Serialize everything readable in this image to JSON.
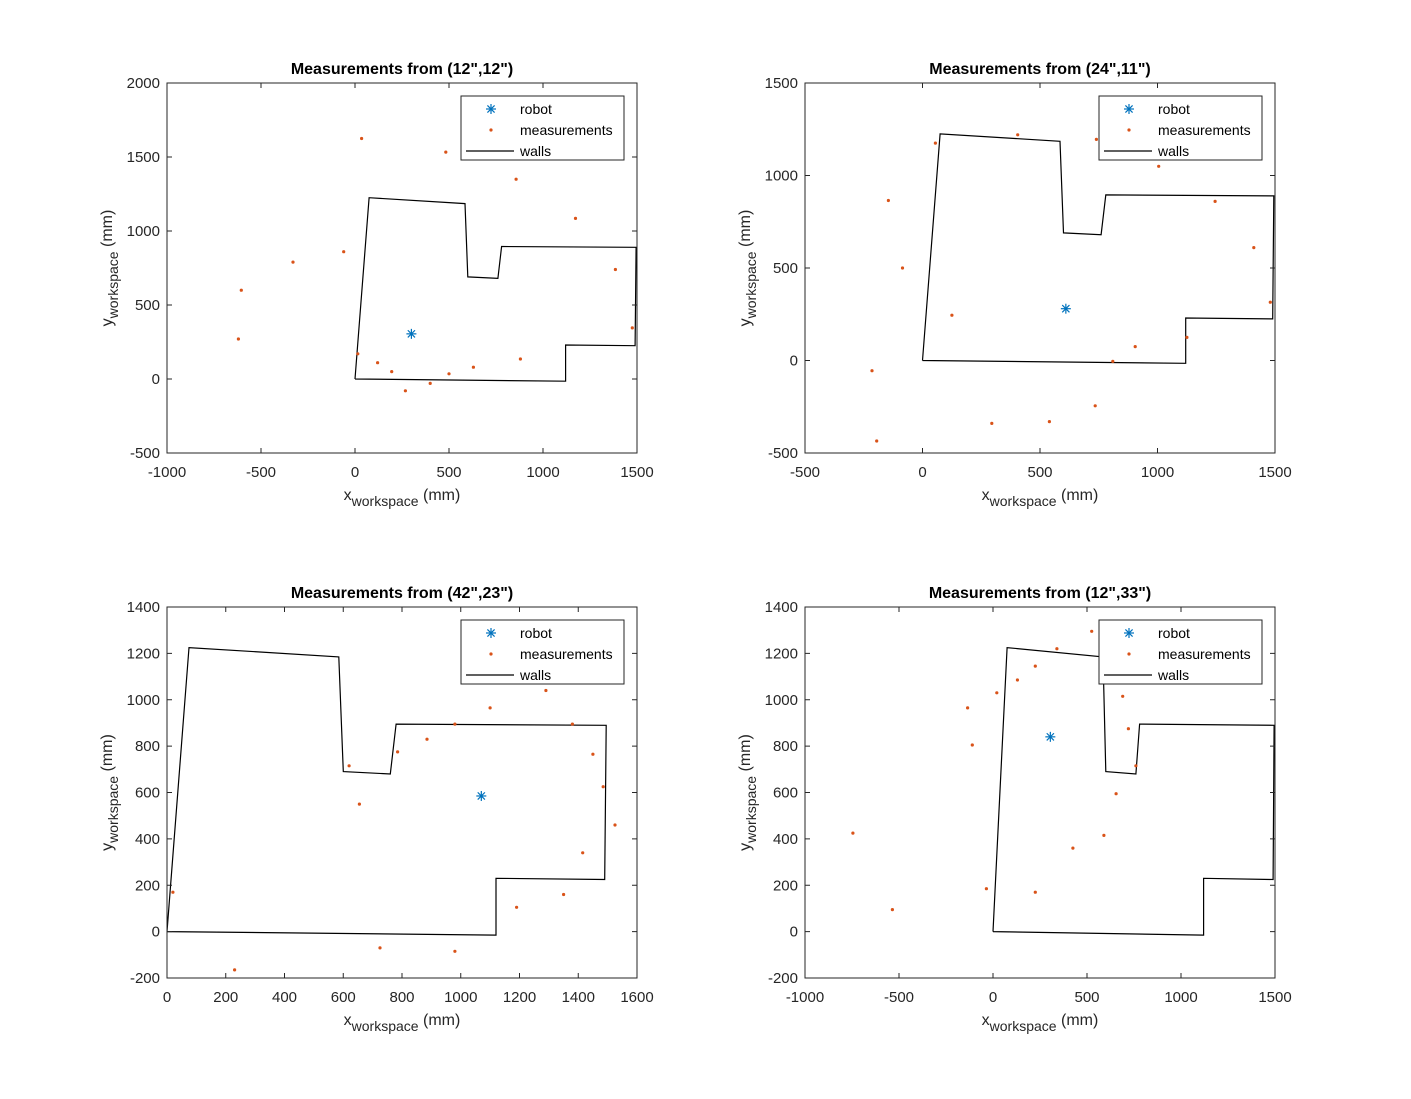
{
  "colors": {
    "robot": "#0072BD",
    "measurements": "#D95319",
    "walls": "#000000",
    "axes": "#262626"
  },
  "chart_data": [
    {
      "type": "scatter",
      "title": "Measurements from (12\",12\")",
      "xlabel": {
        "main": "x",
        "sub": "workspace",
        "unit": " (mm)"
      },
      "ylabel": {
        "main": "y",
        "sub": "workspace",
        "unit": " (mm)"
      },
      "xlim": [
        -1000,
        1500
      ],
      "ylim": [
        -500,
        2000
      ],
      "xticks": [
        -1000,
        -500,
        0,
        500,
        1000,
        1500
      ],
      "yticks": [
        -500,
        0,
        500,
        1000,
        1500,
        2000
      ],
      "legend_position": "top-right",
      "legend": [
        "robot",
        "measurements",
        "walls"
      ],
      "robot": [
        300,
        305
      ],
      "measurements": [
        [
          35,
          1625
        ],
        [
          483,
          1533
        ],
        [
          857,
          1350
        ],
        [
          1173,
          1085
        ],
        [
          1385,
          740
        ],
        [
          1475,
          345
        ],
        [
          880,
          135
        ],
        [
          630,
          80
        ],
        [
          500,
          35
        ],
        [
          400,
          -30
        ],
        [
          268,
          -80
        ],
        [
          195,
          50
        ],
        [
          120,
          110
        ],
        [
          15,
          170
        ],
        [
          -60,
          860
        ],
        [
          -330,
          790
        ],
        [
          -605,
          600
        ],
        [
          -620,
          270
        ]
      ],
      "walls": [
        [
          0,
          0
        ],
        [
          75,
          1225
        ],
        [
          585,
          1185
        ],
        [
          600,
          690
        ],
        [
          760,
          680
        ],
        [
          780,
          895
        ],
        [
          1495,
          890
        ],
        [
          1490,
          225
        ],
        [
          1120,
          230
        ],
        [
          1120,
          -15
        ],
        [
          0,
          0
        ]
      ]
    },
    {
      "type": "scatter",
      "title": "Measurements from (24\",11\")",
      "xlabel": {
        "main": "x",
        "sub": "workspace",
        "unit": " (mm)"
      },
      "ylabel": {
        "main": "y",
        "sub": "workspace",
        "unit": " (mm)"
      },
      "xlim": [
        -500,
        1500
      ],
      "ylim": [
        -500,
        1500
      ],
      "xticks": [
        -500,
        0,
        500,
        1000,
        1500
      ],
      "yticks": [
        -500,
        0,
        500,
        1000,
        1500
      ],
      "legend_position": "top-right",
      "legend": [
        "robot",
        "measurements",
        "walls"
      ],
      "robot": [
        610,
        280
      ],
      "measurements": [
        [
          55,
          1175
        ],
        [
          405,
          1220
        ],
        [
          740,
          1195
        ],
        [
          1005,
          1050
        ],
        [
          1245,
          860
        ],
        [
          1410,
          610
        ],
        [
          1480,
          315
        ],
        [
          1125,
          125
        ],
        [
          905,
          75
        ],
        [
          810,
          -5
        ],
        [
          735,
          -245
        ],
        [
          540,
          -330
        ],
        [
          295,
          -340
        ],
        [
          -195,
          -435
        ],
        [
          -215,
          -55
        ],
        [
          125,
          245
        ],
        [
          -85,
          500
        ],
        [
          -145,
          865
        ]
      ],
      "walls": [
        [
          0,
          0
        ],
        [
          75,
          1225
        ],
        [
          585,
          1185
        ],
        [
          600,
          690
        ],
        [
          760,
          680
        ],
        [
          780,
          895
        ],
        [
          1495,
          890
        ],
        [
          1490,
          225
        ],
        [
          1120,
          230
        ],
        [
          1120,
          -15
        ],
        [
          0,
          0
        ]
      ]
    },
    {
      "type": "scatter",
      "title": "Measurements from (42\",23\")",
      "xlabel": {
        "main": "x",
        "sub": "workspace",
        "unit": " (mm)"
      },
      "ylabel": {
        "main": "y",
        "sub": "workspace",
        "unit": " (mm)"
      },
      "xlim": [
        0,
        1600
      ],
      "ylim": [
        -200,
        1400
      ],
      "xticks": [
        0,
        200,
        400,
        600,
        800,
        1000,
        1200,
        1400,
        1600
      ],
      "yticks": [
        -200,
        0,
        200,
        400,
        600,
        800,
        1000,
        1200,
        1400
      ],
      "legend_position": "top-right",
      "legend": [
        "robot",
        "measurements",
        "walls"
      ],
      "robot": [
        1070,
        585
      ],
      "measurements": [
        [
          1290,
          1040
        ],
        [
          1100,
          965
        ],
        [
          980,
          895
        ],
        [
          885,
          830
        ],
        [
          785,
          775
        ],
        [
          620,
          715
        ],
        [
          655,
          550
        ],
        [
          1380,
          895
        ],
        [
          1450,
          765
        ],
        [
          1485,
          625
        ],
        [
          1525,
          460
        ],
        [
          1415,
          340
        ],
        [
          1350,
          160
        ],
        [
          1190,
          105
        ],
        [
          980,
          -85
        ],
        [
          725,
          -70
        ],
        [
          230,
          -165
        ],
        [
          20,
          170
        ]
      ],
      "walls": [
        [
          0,
          0
        ],
        [
          75,
          1225
        ],
        [
          585,
          1185
        ],
        [
          600,
          690
        ],
        [
          760,
          680
        ],
        [
          780,
          895
        ],
        [
          1495,
          890
        ],
        [
          1490,
          225
        ],
        [
          1120,
          230
        ],
        [
          1120,
          -15
        ],
        [
          0,
          0
        ]
      ]
    },
    {
      "type": "scatter",
      "title": "Measurements from (12\",33\")",
      "xlabel": {
        "main": "x",
        "sub": "workspace",
        "unit": " (mm)"
      },
      "ylabel": {
        "main": "y",
        "sub": "workspace",
        "unit": " (mm)"
      },
      "xlim": [
        -1000,
        1500
      ],
      "ylim": [
        -200,
        1400
      ],
      "xticks": [
        -1000,
        -500,
        0,
        500,
        1000,
        1500
      ],
      "yticks": [
        -200,
        0,
        200,
        400,
        600,
        800,
        1000,
        1200,
        1400
      ],
      "legend_position": "top-right",
      "legend": [
        "robot",
        "measurements",
        "walls"
      ],
      "robot": [
        305,
        840
      ],
      "measurements": [
        [
          525,
          1295
        ],
        [
          340,
          1220
        ],
        [
          225,
          1145
        ],
        [
          130,
          1085
        ],
        [
          20,
          1030
        ],
        [
          -135,
          965
        ],
        [
          -110,
          805
        ],
        [
          -745,
          425
        ],
        [
          -535,
          95
        ],
        [
          -35,
          185
        ],
        [
          225,
          170
        ],
        [
          425,
          360
        ],
        [
          590,
          415
        ],
        [
          655,
          595
        ],
        [
          760,
          715
        ],
        [
          720,
          875
        ],
        [
          690,
          1015
        ]
      ],
      "walls": [
        [
          0,
          0
        ],
        [
          75,
          1225
        ],
        [
          585,
          1185
        ],
        [
          600,
          690
        ],
        [
          760,
          680
        ],
        [
          780,
          895
        ],
        [
          1495,
          890
        ],
        [
          1490,
          225
        ],
        [
          1120,
          230
        ],
        [
          1120,
          -15
        ],
        [
          0,
          0
        ]
      ]
    }
  ]
}
